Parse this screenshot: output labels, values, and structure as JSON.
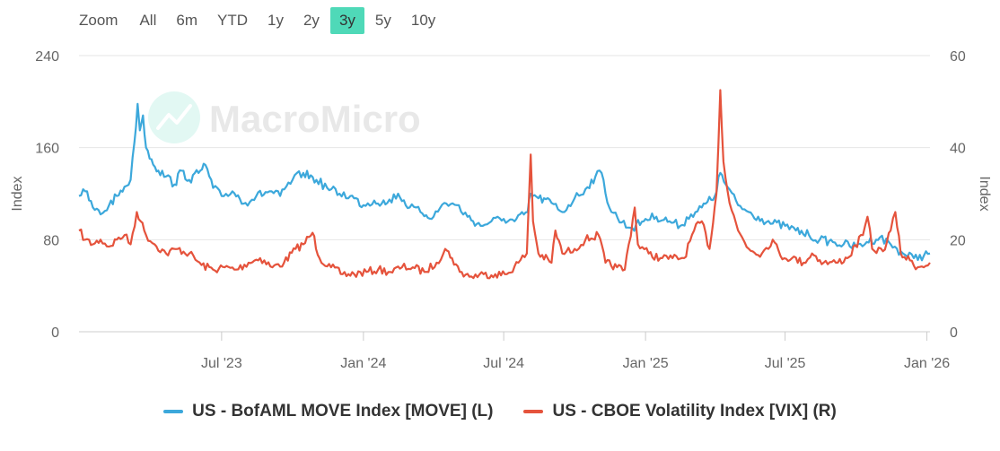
{
  "zoom": {
    "label": "Zoom",
    "options": [
      "All",
      "6m",
      "YTD",
      "1y",
      "2y",
      "3y",
      "5y",
      "10y"
    ],
    "active": "3y"
  },
  "watermark": {
    "text": "MacroMicro"
  },
  "legend": {
    "move": "US - BofAML MOVE Index [MOVE] (L)",
    "vix": "US - CBOE Volatility Index [VIX] (R)"
  },
  "chart_data": {
    "type": "line",
    "x_range": [
      "2022-12-28",
      "2026-01-05"
    ],
    "x_ticks": [
      {
        "date": "2023-07-01",
        "label": "Jul '23"
      },
      {
        "date": "2024-01-01",
        "label": "Jan '24"
      },
      {
        "date": "2024-07-01",
        "label": "Jul '24"
      },
      {
        "date": "2025-01-01",
        "label": "Jan '25"
      },
      {
        "date": "2025-07-01",
        "label": "Jul '25"
      },
      {
        "date": "2026-01-01",
        "label": "Jan '26"
      }
    ],
    "y_left": {
      "label": "Index",
      "min": 0,
      "max": 240,
      "ticks": [
        0,
        80,
        160,
        240
      ]
    },
    "y_right": {
      "label": "Index",
      "min": 0,
      "max": 60,
      "ticks": [
        0,
        20,
        40,
        60
      ]
    },
    "colors": {
      "move": "#3ca8db",
      "vix": "#e5533c",
      "grid": "#e6e6e6",
      "active_zoom": "#4fd9b8"
    },
    "series": [
      {
        "name": "US - BofAML MOVE Index [MOVE] (L)",
        "axis": "left",
        "points": [
          [
            "2022-12-28",
            118
          ],
          [
            "2023-01-05",
            122
          ],
          [
            "2023-01-15",
            108
          ],
          [
            "2023-01-25",
            102
          ],
          [
            "2023-02-05",
            110
          ],
          [
            "2023-02-15",
            118
          ],
          [
            "2023-02-25",
            126
          ],
          [
            "2023-03-05",
            132
          ],
          [
            "2023-03-10",
            165
          ],
          [
            "2023-03-14",
            198
          ],
          [
            "2023-03-17",
            175
          ],
          [
            "2023-03-21",
            188
          ],
          [
            "2023-03-25",
            160
          ],
          [
            "2023-04-01",
            150
          ],
          [
            "2023-04-10",
            140
          ],
          [
            "2023-04-20",
            135
          ],
          [
            "2023-05-01",
            128
          ],
          [
            "2023-05-10",
            140
          ],
          [
            "2023-05-20",
            132
          ],
          [
            "2023-06-01",
            138
          ],
          [
            "2023-06-10",
            145
          ],
          [
            "2023-06-20",
            125
          ],
          [
            "2023-07-01",
            118
          ],
          [
            "2023-07-15",
            122
          ],
          [
            "2023-08-01",
            112
          ],
          [
            "2023-08-15",
            118
          ],
          [
            "2023-09-01",
            122
          ],
          [
            "2023-09-15",
            118
          ],
          [
            "2023-10-01",
            132
          ],
          [
            "2023-10-15",
            138
          ],
          [
            "2023-11-01",
            132
          ],
          [
            "2023-11-15",
            125
          ],
          [
            "2023-12-01",
            120
          ],
          [
            "2023-12-15",
            118
          ],
          [
            "2024-01-01",
            110
          ],
          [
            "2024-01-15",
            114
          ],
          [
            "2024-02-01",
            112
          ],
          [
            "2024-02-15",
            120
          ],
          [
            "2024-03-01",
            108
          ],
          [
            "2024-03-15",
            104
          ],
          [
            "2024-04-01",
            100
          ],
          [
            "2024-04-15",
            112
          ],
          [
            "2024-05-01",
            110
          ],
          [
            "2024-05-15",
            100
          ],
          [
            "2024-06-01",
            92
          ],
          [
            "2024-06-15",
            96
          ],
          [
            "2024-07-01",
            98
          ],
          [
            "2024-07-15",
            96
          ],
          [
            "2024-08-01",
            104
          ],
          [
            "2024-08-05",
            120
          ],
          [
            "2024-08-15",
            116
          ],
          [
            "2024-09-01",
            112
          ],
          [
            "2024-09-15",
            104
          ],
          [
            "2024-10-01",
            116
          ],
          [
            "2024-10-15",
            124
          ],
          [
            "2024-10-28",
            135
          ],
          [
            "2024-11-05",
            138
          ],
          [
            "2024-11-15",
            108
          ],
          [
            "2024-12-01",
            95
          ],
          [
            "2024-12-15",
            90
          ],
          [
            "2025-01-01",
            98
          ],
          [
            "2025-01-15",
            100
          ],
          [
            "2025-02-01",
            96
          ],
          [
            "2025-02-15",
            92
          ],
          [
            "2025-03-01",
            102
          ],
          [
            "2025-03-15",
            108
          ],
          [
            "2025-04-01",
            118
          ],
          [
            "2025-04-08",
            138
          ],
          [
            "2025-04-15",
            128
          ],
          [
            "2025-05-01",
            110
          ],
          [
            "2025-05-15",
            104
          ],
          [
            "2025-06-01",
            98
          ],
          [
            "2025-06-15",
            94
          ],
          [
            "2025-07-01",
            92
          ],
          [
            "2025-07-15",
            88
          ],
          [
            "2025-08-01",
            84
          ],
          [
            "2025-08-15",
            80
          ],
          [
            "2025-09-01",
            78
          ],
          [
            "2025-09-15",
            76
          ],
          [
            "2025-10-01",
            74
          ],
          [
            "2025-10-15",
            78
          ],
          [
            "2025-11-01",
            82
          ],
          [
            "2025-11-15",
            76
          ],
          [
            "2025-12-01",
            68
          ],
          [
            "2025-12-15",
            64
          ],
          [
            "2026-01-05",
            68
          ]
        ]
      },
      {
        "name": "US - CBOE Volatility Index [VIX] (R)",
        "axis": "right",
        "points": [
          [
            "2022-12-28",
            22
          ],
          [
            "2023-01-05",
            20
          ],
          [
            "2023-01-15",
            19
          ],
          [
            "2023-01-25",
            20
          ],
          [
            "2023-02-05",
            18.5
          ],
          [
            "2023-02-15",
            20
          ],
          [
            "2023-02-25",
            21
          ],
          [
            "2023-03-05",
            19
          ],
          [
            "2023-03-13",
            26
          ],
          [
            "2023-03-18",
            24
          ],
          [
            "2023-03-25",
            21
          ],
          [
            "2023-04-05",
            19
          ],
          [
            "2023-04-20",
            17
          ],
          [
            "2023-05-05",
            18
          ],
          [
            "2023-05-20",
            17
          ],
          [
            "2023-06-05",
            14.5
          ],
          [
            "2023-06-20",
            13.5
          ],
          [
            "2023-07-05",
            14
          ],
          [
            "2023-07-20",
            13.5
          ],
          [
            "2023-08-05",
            15
          ],
          [
            "2023-08-20",
            16
          ],
          [
            "2023-09-05",
            14
          ],
          [
            "2023-09-20",
            15
          ],
          [
            "2023-10-05",
            18
          ],
          [
            "2023-10-15",
            19
          ],
          [
            "2023-10-27",
            21.5
          ],
          [
            "2023-11-05",
            16
          ],
          [
            "2023-11-20",
            14
          ],
          [
            "2023-12-05",
            12.5
          ],
          [
            "2023-12-20",
            12.5
          ],
          [
            "2024-01-05",
            13
          ],
          [
            "2024-01-20",
            13.5
          ],
          [
            "2024-02-05",
            13
          ],
          [
            "2024-02-20",
            14
          ],
          [
            "2024-03-05",
            14
          ],
          [
            "2024-03-20",
            13
          ],
          [
            "2024-04-05",
            15
          ],
          [
            "2024-04-16",
            18
          ],
          [
            "2024-04-25",
            16
          ],
          [
            "2024-05-05",
            13
          ],
          [
            "2024-05-20",
            12
          ],
          [
            "2024-06-05",
            12.5
          ],
          [
            "2024-06-20",
            12.5
          ],
          [
            "2024-07-05",
            12.5
          ],
          [
            "2024-07-20",
            15
          ],
          [
            "2024-07-31",
            17
          ],
          [
            "2024-08-05",
            38.5
          ],
          [
            "2024-08-08",
            24
          ],
          [
            "2024-08-15",
            17
          ],
          [
            "2024-09-01",
            15
          ],
          [
            "2024-09-06",
            22
          ],
          [
            "2024-09-15",
            17
          ],
          [
            "2024-10-01",
            18
          ],
          [
            "2024-10-15",
            20
          ],
          [
            "2024-11-01",
            21
          ],
          [
            "2024-11-10",
            15
          ],
          [
            "2024-11-25",
            14
          ],
          [
            "2024-12-05",
            13.5
          ],
          [
            "2024-12-18",
            27
          ],
          [
            "2024-12-22",
            19
          ],
          [
            "2025-01-05",
            17
          ],
          [
            "2025-01-20",
            16
          ],
          [
            "2025-02-05",
            16
          ],
          [
            "2025-02-20",
            16
          ],
          [
            "2025-03-05",
            22
          ],
          [
            "2025-03-15",
            24
          ],
          [
            "2025-03-25",
            18
          ],
          [
            "2025-04-03",
            30
          ],
          [
            "2025-04-08",
            52.5
          ],
          [
            "2025-04-12",
            37
          ],
          [
            "2025-04-20",
            28
          ],
          [
            "2025-05-01",
            22
          ],
          [
            "2025-05-15",
            18
          ],
          [
            "2025-06-01",
            17
          ],
          [
            "2025-06-15",
            20
          ],
          [
            "2025-06-25",
            16.5
          ],
          [
            "2025-07-10",
            16
          ],
          [
            "2025-07-25",
            15
          ],
          [
            "2025-08-05",
            17
          ],
          [
            "2025-08-20",
            15
          ],
          [
            "2025-09-05",
            15
          ],
          [
            "2025-09-20",
            16
          ],
          [
            "2025-10-10",
            21
          ],
          [
            "2025-10-16",
            25
          ],
          [
            "2025-10-22",
            18
          ],
          [
            "2025-11-05",
            17.5
          ],
          [
            "2025-11-15",
            22
          ],
          [
            "2025-11-21",
            26
          ],
          [
            "2025-11-28",
            17
          ],
          [
            "2025-12-10",
            15.5
          ],
          [
            "2025-12-20",
            14
          ],
          [
            "2026-01-05",
            15
          ]
        ]
      }
    ]
  }
}
